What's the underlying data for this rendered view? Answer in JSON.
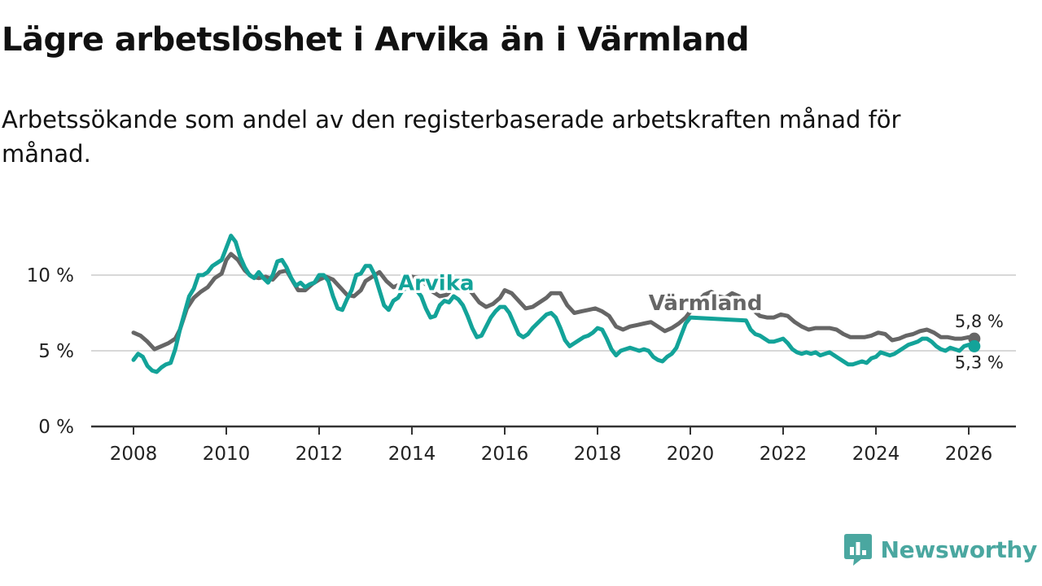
{
  "title": "Lägre arbetslöshet i Arvika än i Värmland",
  "subtitle": "Arbetssökande som andel av den registerbaserade arbetskraften månad för månad.",
  "brand": {
    "name": "Newsworthy",
    "color": "#4aa7a0"
  },
  "chart_data": {
    "type": "line",
    "x_unit": "year",
    "xlim": [
      2008,
      2026.2
    ],
    "xticks": [
      2008,
      2010,
      2012,
      2014,
      2016,
      2018,
      2020,
      2022,
      2024,
      2026
    ],
    "ylim": [
      0,
      12.5
    ],
    "yticks": [
      0,
      5,
      10
    ],
    "ytick_labels": [
      "0 %",
      "5 %",
      "10 %"
    ],
    "grid": "horizontal",
    "series": [
      {
        "name": "Värmland",
        "color": "#666666",
        "end_label": "5,8 %",
        "points": [
          [
            2008.0,
            6.2
          ],
          [
            2008.15,
            6.0
          ],
          [
            2008.3,
            5.6
          ],
          [
            2008.45,
            5.1
          ],
          [
            2008.6,
            5.3
          ],
          [
            2008.75,
            5.5
          ],
          [
            2008.9,
            5.8
          ],
          [
            2009.0,
            6.4
          ],
          [
            2009.15,
            7.8
          ],
          [
            2009.3,
            8.5
          ],
          [
            2009.45,
            8.9
          ],
          [
            2009.6,
            9.2
          ],
          [
            2009.75,
            9.8
          ],
          [
            2009.9,
            10.1
          ],
          [
            2010.0,
            11.0
          ],
          [
            2010.1,
            11.4
          ],
          [
            2010.25,
            11.0
          ],
          [
            2010.4,
            10.3
          ],
          [
            2010.55,
            9.9
          ],
          [
            2010.7,
            9.8
          ],
          [
            2010.85,
            9.9
          ],
          [
            2011.0,
            9.7
          ],
          [
            2011.15,
            10.2
          ],
          [
            2011.3,
            10.3
          ],
          [
            2011.45,
            9.5
          ],
          [
            2011.55,
            9.0
          ],
          [
            2011.7,
            9.0
          ],
          [
            2011.85,
            9.4
          ],
          [
            2012.0,
            9.7
          ],
          [
            2012.15,
            9.9
          ],
          [
            2012.3,
            9.7
          ],
          [
            2012.45,
            9.2
          ],
          [
            2012.6,
            8.7
          ],
          [
            2012.75,
            8.6
          ],
          [
            2012.9,
            9.0
          ],
          [
            2013.0,
            9.6
          ],
          [
            2013.15,
            9.9
          ],
          [
            2013.3,
            10.2
          ],
          [
            2013.45,
            9.6
          ],
          [
            2013.6,
            9.2
          ],
          [
            2013.75,
            9.4
          ],
          [
            2013.9,
            9.8
          ],
          [
            2014.0,
            9.9
          ],
          [
            2014.15,
            9.8
          ],
          [
            2014.3,
            9.4
          ],
          [
            2014.45,
            8.9
          ],
          [
            2014.6,
            8.6
          ],
          [
            2014.75,
            8.7
          ],
          [
            2014.9,
            9.2
          ],
          [
            2015.0,
            9.6
          ],
          [
            2015.15,
            9.3
          ],
          [
            2015.3,
            8.8
          ],
          [
            2015.45,
            8.2
          ],
          [
            2015.6,
            7.9
          ],
          [
            2015.75,
            8.1
          ],
          [
            2015.9,
            8.5
          ],
          [
            2016.0,
            9.0
          ],
          [
            2016.15,
            8.8
          ],
          [
            2016.3,
            8.3
          ],
          [
            2016.45,
            7.8
          ],
          [
            2016.6,
            7.9
          ],
          [
            2016.75,
            8.2
          ],
          [
            2016.9,
            8.5
          ],
          [
            2017.0,
            8.8
          ],
          [
            2017.2,
            8.8
          ],
          [
            2017.35,
            8.0
          ],
          [
            2017.5,
            7.5
          ],
          [
            2017.65,
            7.6
          ],
          [
            2017.8,
            7.7
          ],
          [
            2017.95,
            7.8
          ],
          [
            2018.1,
            7.6
          ],
          [
            2018.25,
            7.3
          ],
          [
            2018.4,
            6.6
          ],
          [
            2018.55,
            6.4
          ],
          [
            2018.7,
            6.6
          ],
          [
            2018.85,
            6.7
          ],
          [
            2019.0,
            6.8
          ],
          [
            2019.15,
            6.9
          ],
          [
            2019.3,
            6.6
          ],
          [
            2019.45,
            6.3
          ],
          [
            2019.6,
            6.5
          ],
          [
            2019.75,
            6.8
          ],
          [
            2019.9,
            7.2
          ],
          [
            2020.0,
            7.6
          ],
          [
            2020.15,
            8.2
          ],
          [
            2020.3,
            8.7
          ],
          [
            2020.45,
            8.9
          ],
          [
            2020.6,
            8.6
          ],
          [
            2020.75,
            8.5
          ],
          [
            2020.9,
            8.8
          ],
          [
            2021.05,
            8.6
          ],
          [
            2021.2,
            8.1
          ],
          [
            2021.35,
            7.7
          ],
          [
            2021.5,
            7.3
          ],
          [
            2021.65,
            7.2
          ],
          [
            2021.8,
            7.2
          ],
          [
            2021.95,
            7.4
          ],
          [
            2022.1,
            7.3
          ],
          [
            2022.25,
            6.9
          ],
          [
            2022.4,
            6.6
          ],
          [
            2022.55,
            6.4
          ],
          [
            2022.7,
            6.5
          ],
          [
            2022.85,
            6.5
          ],
          [
            2023.0,
            6.5
          ],
          [
            2023.15,
            6.4
          ],
          [
            2023.3,
            6.1
          ],
          [
            2023.45,
            5.9
          ],
          [
            2023.6,
            5.9
          ],
          [
            2023.75,
            5.9
          ],
          [
            2023.9,
            6.0
          ],
          [
            2024.05,
            6.2
          ],
          [
            2024.2,
            6.1
          ],
          [
            2024.35,
            5.7
          ],
          [
            2024.5,
            5.8
          ],
          [
            2024.65,
            6.0
          ],
          [
            2024.8,
            6.1
          ],
          [
            2024.95,
            6.3
          ],
          [
            2025.1,
            6.4
          ],
          [
            2025.25,
            6.2
          ],
          [
            2025.4,
            5.9
          ],
          [
            2025.55,
            5.9
          ],
          [
            2025.7,
            5.8
          ],
          [
            2025.85,
            5.8
          ],
          [
            2026.0,
            5.9
          ],
          [
            2026.12,
            5.8
          ]
        ]
      },
      {
        "name": "Arvika",
        "color": "#13a399",
        "end_label": "5,3 %",
        "points": [
          [
            2008.0,
            4.4
          ],
          [
            2008.1,
            4.8
          ],
          [
            2008.2,
            4.6
          ],
          [
            2008.3,
            4.0
          ],
          [
            2008.4,
            3.7
          ],
          [
            2008.5,
            3.6
          ],
          [
            2008.6,
            3.9
          ],
          [
            2008.7,
            4.1
          ],
          [
            2008.8,
            4.2
          ],
          [
            2008.9,
            5.1
          ],
          [
            2009.0,
            6.4
          ],
          [
            2009.1,
            7.5
          ],
          [
            2009.2,
            8.6
          ],
          [
            2009.3,
            9.1
          ],
          [
            2009.4,
            10.0
          ],
          [
            2009.5,
            10.0
          ],
          [
            2009.6,
            10.2
          ],
          [
            2009.7,
            10.6
          ],
          [
            2009.8,
            10.8
          ],
          [
            2009.9,
            11.0
          ],
          [
            2010.0,
            11.8
          ],
          [
            2010.1,
            12.6
          ],
          [
            2010.2,
            12.2
          ],
          [
            2010.3,
            11.2
          ],
          [
            2010.4,
            10.5
          ],
          [
            2010.5,
            10.0
          ],
          [
            2010.6,
            9.8
          ],
          [
            2010.7,
            10.2
          ],
          [
            2010.8,
            9.8
          ],
          [
            2010.9,
            9.5
          ],
          [
            2011.0,
            10.0
          ],
          [
            2011.1,
            10.9
          ],
          [
            2011.2,
            11.0
          ],
          [
            2011.3,
            10.5
          ],
          [
            2011.4,
            9.8
          ],
          [
            2011.5,
            9.3
          ],
          [
            2011.6,
            9.5
          ],
          [
            2011.7,
            9.2
          ],
          [
            2011.8,
            9.4
          ],
          [
            2011.9,
            9.5
          ],
          [
            2012.0,
            10.0
          ],
          [
            2012.1,
            10.0
          ],
          [
            2012.2,
            9.6
          ],
          [
            2012.3,
            8.6
          ],
          [
            2012.4,
            7.8
          ],
          [
            2012.5,
            7.7
          ],
          [
            2012.6,
            8.4
          ],
          [
            2012.7,
            9.0
          ],
          [
            2012.8,
            10.0
          ],
          [
            2012.9,
            10.1
          ],
          [
            2013.0,
            10.6
          ],
          [
            2013.1,
            10.6
          ],
          [
            2013.2,
            10.0
          ],
          [
            2013.3,
            9.0
          ],
          [
            2013.4,
            8.0
          ],
          [
            2013.5,
            7.7
          ],
          [
            2013.6,
            8.3
          ],
          [
            2013.7,
            8.5
          ],
          [
            2013.8,
            9.0
          ],
          [
            2013.9,
            9.2
          ],
          [
            2014.0,
            9.6
          ],
          [
            2014.1,
            9.0
          ],
          [
            2014.2,
            8.6
          ],
          [
            2014.3,
            7.8
          ],
          [
            2014.4,
            7.2
          ],
          [
            2014.5,
            7.3
          ],
          [
            2014.6,
            8.0
          ],
          [
            2014.7,
            8.3
          ],
          [
            2014.8,
            8.2
          ],
          [
            2014.9,
            8.6
          ],
          [
            2015.0,
            8.4
          ],
          [
            2015.1,
            8.0
          ],
          [
            2015.2,
            7.3
          ],
          [
            2015.3,
            6.5
          ],
          [
            2015.4,
            5.9
          ],
          [
            2015.5,
            6.0
          ],
          [
            2015.6,
            6.6
          ],
          [
            2015.7,
            7.2
          ],
          [
            2015.8,
            7.6
          ],
          [
            2015.9,
            7.9
          ],
          [
            2016.0,
            7.9
          ],
          [
            2016.1,
            7.5
          ],
          [
            2016.2,
            6.8
          ],
          [
            2016.3,
            6.1
          ],
          [
            2016.4,
            5.9
          ],
          [
            2016.5,
            6.1
          ],
          [
            2016.6,
            6.5
          ],
          [
            2016.7,
            6.8
          ],
          [
            2016.8,
            7.1
          ],
          [
            2016.9,
            7.4
          ],
          [
            2017.0,
            7.5
          ],
          [
            2017.1,
            7.2
          ],
          [
            2017.2,
            6.5
          ],
          [
            2017.3,
            5.7
          ],
          [
            2017.4,
            5.3
          ],
          [
            2017.5,
            5.5
          ],
          [
            2017.6,
            5.7
          ],
          [
            2017.7,
            5.9
          ],
          [
            2017.8,
            6.0
          ],
          [
            2017.9,
            6.2
          ],
          [
            2018.0,
            6.5
          ],
          [
            2018.1,
            6.4
          ],
          [
            2018.2,
            5.8
          ],
          [
            2018.3,
            5.1
          ],
          [
            2018.4,
            4.7
          ],
          [
            2018.5,
            5.0
          ],
          [
            2018.6,
            5.1
          ],
          [
            2018.7,
            5.2
          ],
          [
            2018.8,
            5.1
          ],
          [
            2018.9,
            5.0
          ],
          [
            2019.0,
            5.1
          ],
          [
            2019.1,
            5.0
          ],
          [
            2019.2,
            4.6
          ],
          [
            2019.3,
            4.4
          ],
          [
            2019.4,
            4.3
          ],
          [
            2019.5,
            4.6
          ],
          [
            2019.6,
            4.8
          ],
          [
            2019.7,
            5.2
          ],
          [
            2019.8,
            6.0
          ],
          [
            2019.9,
            6.8
          ],
          [
            2020.0,
            7.2
          ],
          [
            2021.2,
            7.0
          ],
          [
            2021.3,
            6.4
          ],
          [
            2021.4,
            6.1
          ],
          [
            2021.5,
            6.0
          ],
          [
            2021.6,
            5.8
          ],
          [
            2021.7,
            5.6
          ],
          [
            2021.8,
            5.6
          ],
          [
            2021.9,
            5.7
          ],
          [
            2022.0,
            5.8
          ],
          [
            2022.1,
            5.5
          ],
          [
            2022.2,
            5.1
          ],
          [
            2022.3,
            4.9
          ],
          [
            2022.4,
            4.8
          ],
          [
            2022.5,
            4.9
          ],
          [
            2022.6,
            4.8
          ],
          [
            2022.7,
            4.9
          ],
          [
            2022.8,
            4.7
          ],
          [
            2022.9,
            4.8
          ],
          [
            2023.0,
            4.9
          ],
          [
            2023.1,
            4.7
          ],
          [
            2023.2,
            4.5
          ],
          [
            2023.3,
            4.3
          ],
          [
            2023.4,
            4.1
          ],
          [
            2023.5,
            4.1
          ],
          [
            2023.6,
            4.2
          ],
          [
            2023.7,
            4.3
          ],
          [
            2023.8,
            4.2
          ],
          [
            2023.9,
            4.5
          ],
          [
            2024.0,
            4.6
          ],
          [
            2024.1,
            4.9
          ],
          [
            2024.2,
            4.8
          ],
          [
            2024.3,
            4.7
          ],
          [
            2024.4,
            4.8
          ],
          [
            2024.5,
            5.0
          ],
          [
            2024.6,
            5.2
          ],
          [
            2024.7,
            5.4
          ],
          [
            2024.8,
            5.5
          ],
          [
            2024.9,
            5.6
          ],
          [
            2025.0,
            5.8
          ],
          [
            2025.1,
            5.8
          ],
          [
            2025.2,
            5.6
          ],
          [
            2025.3,
            5.3
          ],
          [
            2025.4,
            5.1
          ],
          [
            2025.5,
            5.0
          ],
          [
            2025.6,
            5.2
          ],
          [
            2025.7,
            5.1
          ],
          [
            2025.8,
            5.0
          ],
          [
            2025.9,
            5.3
          ],
          [
            2026.0,
            5.4
          ],
          [
            2026.12,
            5.3
          ]
        ]
      }
    ],
    "annotations": [
      {
        "text": "Arvika",
        "series": "Arvika",
        "x": 2013.7,
        "y": 9.0
      },
      {
        "text": "Värmland",
        "series": "Värmland",
        "x": 2019.1,
        "y": 7.7
      }
    ]
  }
}
